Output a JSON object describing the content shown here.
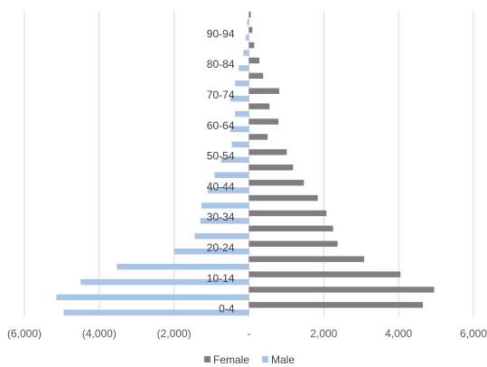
{
  "chart_data": {
    "type": "bar",
    "orientation": "horizontal",
    "grid": true,
    "legend_position": "bottom",
    "xlim": [
      -6000,
      6000
    ],
    "x_ticks": [
      -6000,
      -4000,
      -2000,
      0,
      2000,
      4000,
      6000
    ],
    "x_tick_labels": [
      "(6,000)",
      "(4,000)",
      "(2,000)",
      "-",
      "2,000",
      "4,000",
      "6,000"
    ],
    "categories": [
      "0-4",
      "5-9",
      "10-14",
      "15-19",
      "20-24",
      "25-29",
      "30-34",
      "35-39",
      "40-44",
      "45-49",
      "50-54",
      "55-59",
      "60-64",
      "65-69",
      "70-74",
      "75-79",
      "80-84",
      "85-89",
      "90-94",
      "95-99"
    ],
    "shown_category_labels": [
      "0-4",
      "10-14",
      "20-24",
      "30-34",
      "40-44",
      "50-54",
      "60-64",
      "70-74",
      "80-84",
      "90-94"
    ],
    "series": [
      {
        "name": "Female",
        "color": "#7f7f7f",
        "values": [
          4650,
          4950,
          4050,
          3080,
          2370,
          2250,
          2070,
          1840,
          1470,
          1180,
          1010,
          500,
          790,
          550,
          810,
          380,
          280,
          140,
          90,
          50
        ]
      },
      {
        "name": "Male",
        "color": "#a9c4e6",
        "values": [
          -4950,
          -5150,
          -4500,
          -3530,
          -2000,
          -1450,
          -1300,
          -1270,
          -1100,
          -920,
          -750,
          -460,
          -500,
          -370,
          -500,
          -370,
          -270,
          -150,
          -90,
          -50
        ]
      }
    ]
  }
}
